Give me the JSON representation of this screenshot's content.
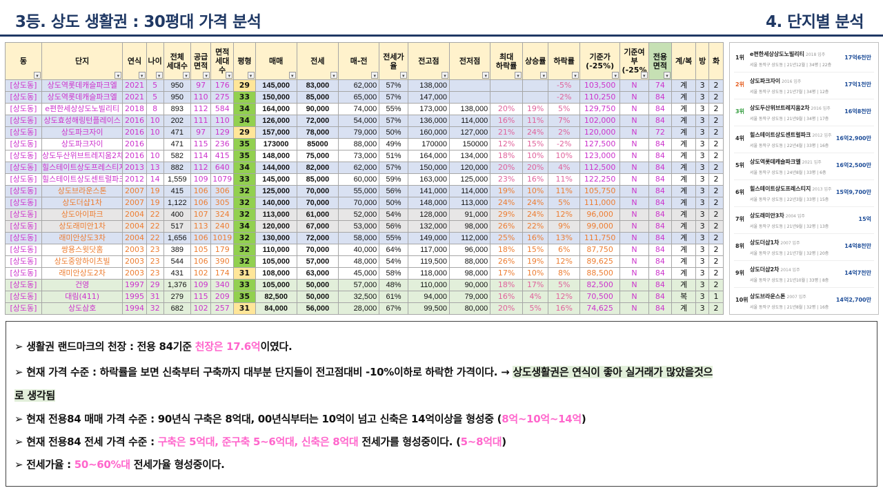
{
  "header": {
    "title_left": "3등. 상도 생활권 : 30평대 가격 분석",
    "title_right": "4. 단지별 분석"
  },
  "table": {
    "columns": [
      "동",
      "단지",
      "연식",
      "나이",
      "전체\n세대수",
      "공급\n면적",
      "면적\n세대\n수",
      "평형",
      "매매",
      "전세",
      "매-전",
      "전세가\n율",
      "전고점",
      "전저점",
      "최대\n하락률",
      "상승률",
      "하락률",
      "기준가\n(-25%)",
      "기준여\n부\n(-25%",
      "전용\n면적",
      "계/복",
      "방",
      "화"
    ],
    "rows": [
      {
        "c": "blue",
        "py": "Y",
        "v": [
          "[상도동]",
          "상도역롯데캐슬파크엘",
          "2021",
          "5",
          "950",
          "97",
          "176",
          "29",
          "145,000",
          "83,000",
          "62,000",
          "57%",
          "138,000",
          "",
          "",
          "",
          "-5%",
          "103,500",
          "N",
          "74",
          "계",
          "3",
          "2"
        ]
      },
      {
        "c": "blue",
        "py": "G",
        "v": [
          "[상도동]",
          "상도역롯데캐슬파크엘",
          "2021",
          "5",
          "950",
          "110",
          "275",
          "33",
          "150,000",
          "85,000",
          "65,000",
          "57%",
          "147,000",
          "",
          "",
          "",
          "-2%",
          "110,250",
          "N",
          "84",
          "계",
          "3",
          "2"
        ]
      },
      {
        "c": "white",
        "py": "G",
        "v": [
          "[상도동]",
          "e편한세상상도노빌리티",
          "2018",
          "8",
          "893",
          "112",
          "584",
          "34",
          "164,000",
          "90,000",
          "74,000",
          "55%",
          "173,000",
          "138,000",
          "20%",
          "19%",
          "5%",
          "129,750",
          "N",
          "84",
          "계",
          "3",
          "2"
        ]
      },
      {
        "c": "blue",
        "py": "G",
        "v": [
          "[상도동]",
          "상도효성해링턴플레이스",
          "2016",
          "10",
          "202",
          "111",
          "110",
          "34",
          "126,000",
          "72,000",
          "54,000",
          "57%",
          "136,000",
          "114,000",
          "16%",
          "11%",
          "7%",
          "102,000",
          "N",
          "84",
          "계",
          "3",
          "2"
        ]
      },
      {
        "c": "blue",
        "py": "Y",
        "v": [
          "[상도동]",
          "상도파크자이",
          "2016",
          "10",
          "471",
          "97",
          "129",
          "29",
          "157,000",
          "78,000",
          "79,000",
          "50%",
          "160,000",
          "127,000",
          "21%",
          "24%",
          "2%",
          "120,000",
          "N",
          "72",
          "계",
          "3",
          "2"
        ]
      },
      {
        "c": "white",
        "py": "G",
        "v": [
          "[상도동]",
          "상도파크자이",
          "2016",
          "",
          "471",
          "115",
          "236",
          "35",
          "173000",
          "85000",
          "88,000",
          "49%",
          "170000",
          "150000",
          "12%",
          "15%",
          "-2%",
          "127,500",
          "N",
          "84",
          "계",
          "3",
          "2"
        ]
      },
      {
        "c": "white",
        "py": "G",
        "v": [
          "[상도동]",
          "상도두산위브트레지움2차",
          "2016",
          "10",
          "582",
          "114",
          "415",
          "35",
          "148,000",
          "75,000",
          "73,000",
          "51%",
          "164,000",
          "134,000",
          "18%",
          "10%",
          "10%",
          "123,000",
          "N",
          "84",
          "계",
          "3",
          "2"
        ]
      },
      {
        "c": "blue",
        "py": "G",
        "v": [
          "[상도동]",
          "힐스테이트상도프레스티지",
          "2013",
          "13",
          "882",
          "112",
          "640",
          "34",
          "144,000",
          "82,000",
          "62,000",
          "57%",
          "150,000",
          "120,000",
          "20%",
          "20%",
          "4%",
          "112,500",
          "N",
          "84",
          "계",
          "3",
          "2"
        ]
      },
      {
        "c": "white",
        "py": "G",
        "v": [
          "[상도동]",
          "힐스테이트상도센트럴파크",
          "2012",
          "14",
          "1,559",
          "109",
          "1079",
          "33",
          "145,000",
          "85,000",
          "60,000",
          "59%",
          "163,000",
          "125,000",
          "23%",
          "16%",
          "11%",
          "122,250",
          "N",
          "84",
          "계",
          "3",
          "2"
        ]
      },
      {
        "c": "blue",
        "py": "G",
        "o": 1,
        "v": [
          "[상도동]",
          "상도브라운스톤",
          "2007",
          "19",
          "415",
          "106",
          "306",
          "32",
          "125,000",
          "70,000",
          "55,000",
          "56%",
          "141,000",
          "114,000",
          "19%",
          "10%",
          "11%",
          "105,750",
          "N",
          "84",
          "계",
          "3",
          "2"
        ]
      },
      {
        "c": "blue",
        "py": "G",
        "o": 1,
        "v": [
          "[상도동]",
          "상도더샵1차",
          "2007",
          "19",
          "1,122",
          "106",
          "305",
          "32",
          "140,000",
          "70,000",
          "70,000",
          "50%",
          "148,000",
          "113,000",
          "24%",
          "24%",
          "5%",
          "111,000",
          "N",
          "84",
          "계",
          "3",
          "2"
        ]
      },
      {
        "c": "grey",
        "py": "G",
        "o": 1,
        "v": [
          "[상도동]",
          "상도아이파크",
          "2004",
          "22",
          "400",
          "107",
          "324",
          "32",
          "113,000",
          "61,000",
          "52,000",
          "54%",
          "128,000",
          "91,000",
          "29%",
          "24%",
          "12%",
          "96,000",
          "N",
          "84",
          "계",
          "3",
          "2"
        ]
      },
      {
        "c": "grey",
        "py": "G",
        "o": 1,
        "v": [
          "[상도동]",
          "상도래미안1차",
          "2004",
          "22",
          "517",
          "113",
          "240",
          "34",
          "120,000",
          "67,000",
          "53,000",
          "56%",
          "132,000",
          "98,000",
          "26%",
          "22%",
          "9%",
          "99,000",
          "N",
          "84",
          "계",
          "3",
          "2"
        ]
      },
      {
        "c": "blue",
        "py": "G",
        "o": 1,
        "v": [
          "[상도동]",
          "래미안상도3차",
          "2004",
          "22",
          "1,656",
          "106",
          "1019",
          "32",
          "130,000",
          "72,000",
          "58,000",
          "55%",
          "149,000",
          "112,000",
          "25%",
          "16%",
          "13%",
          "111,750",
          "N",
          "84",
          "계",
          "3",
          "2"
        ]
      },
      {
        "c": "white",
        "py": "G",
        "o": 1,
        "v": [
          "[상도동]",
          "쌍용스윗닷홈",
          "2003",
          "23",
          "389",
          "105",
          "179",
          "32",
          "110,000",
          "70,000",
          "40,000",
          "64%",
          "117,000",
          "96,000",
          "18%",
          "15%",
          "6%",
          "87,750",
          "N",
          "84",
          "계",
          "3",
          "2"
        ]
      },
      {
        "c": "white",
        "py": "G",
        "o": 1,
        "v": [
          "[상도동]",
          "상도중앙하이츠빌",
          "2003",
          "23",
          "544",
          "106",
          "390",
          "32",
          "105,000",
          "57,000",
          "48,000",
          "54%",
          "119,500",
          "88,000",
          "26%",
          "19%",
          "12%",
          "89,625",
          "N",
          "84",
          "계",
          "3",
          "2"
        ]
      },
      {
        "c": "white",
        "py": "Y",
        "o": 1,
        "v": [
          "[상도동]",
          "래미안상도2차",
          "2003",
          "23",
          "431",
          "102",
          "174",
          "31",
          "108,000",
          "63,000",
          "45,000",
          "58%",
          "118,000",
          "98,000",
          "17%",
          "10%",
          "8%",
          "88,500",
          "N",
          "84",
          "계",
          "3",
          "2"
        ]
      },
      {
        "c": "teal",
        "py": "G",
        "v": [
          "[상도동]",
          "건영",
          "1997",
          "29",
          "1,376",
          "109",
          "340",
          "33",
          "105,000",
          "50,000",
          "57,000",
          "48%",
          "110,000",
          "90,000",
          "18%",
          "17%",
          "5%",
          "82,500",
          "N",
          "84",
          "계",
          "3",
          "2"
        ]
      },
      {
        "c": "teal",
        "py": "G",
        "v": [
          "[상도동]",
          "대림(411)",
          "1995",
          "31",
          "279",
          "115",
          "209",
          "35",
          "82,500",
          "50,000",
          "32,500",
          "61%",
          "94,000",
          "79,000",
          "16%",
          "4%",
          "12%",
          "70,500",
          "N",
          "84",
          "복",
          "3",
          "1"
        ]
      },
      {
        "c": "teal",
        "py": "Y",
        "v": [
          "[상도동]",
          "상도삼호",
          "1994",
          "32",
          "682",
          "102",
          "257",
          "31",
          "84,000",
          "56,000",
          "28,000",
          "67%",
          "99,500",
          "80,000",
          "20%",
          "5%",
          "16%",
          "74,625",
          "N",
          "84",
          "계",
          "3",
          "2"
        ]
      }
    ]
  },
  "ranking": [
    {
      "rank": "1위",
      "name": "e편한세상상도노빌리티",
      "year": "2018 입주",
      "sub": "서울 동작구 상도동 | 21년12월 | 34평 | 22층",
      "price": "17억6천만",
      "color": "dark"
    },
    {
      "rank": "2위",
      "name": "상도파크자이",
      "year": "2016 입주",
      "sub": "서울 동작구 상도동 | 21년7월 | 34평 | 12층",
      "price": "17억1천만",
      "color": "orange"
    },
    {
      "rank": "3위",
      "name": "상도두산위브트레지움2차",
      "year": "2016 입주",
      "sub": "서울 동작구 상도동 | 21년9월 | 34평 | 17층",
      "price": "16억8천만",
      "color": "green"
    },
    {
      "rank": "4위",
      "name": "힐스테이트상도센트럴파크",
      "year": "2012 입주",
      "sub": "서울 동작구 상도동 | 22년4월 | 33평 | 16층",
      "price": "16억2,900만",
      "color": "dark"
    },
    {
      "rank": "5위",
      "name": "상도역롯데캐슬파크엘",
      "year": "2021 입주",
      "sub": "서울 동작구 상도동 | 24년8월 | 33평 | 6층",
      "price": "16억2,500만",
      "color": "dark"
    },
    {
      "rank": "6위",
      "name": "힐스테이트상도프레스티지",
      "year": "2013 입주",
      "sub": "서울 동작구 상도동 | 22년3월 | 33평 | 15층",
      "price": "15억9,700만",
      "color": "dark"
    },
    {
      "rank": "7위",
      "name": "상도래미안3차",
      "year": "2004 입주",
      "sub": "서울 동작구 상도동 | 21년9월 | 32평 | 13층",
      "price": "15억",
      "color": "dark"
    },
    {
      "rank": "8위",
      "name": "상도더샵1차",
      "year": "2007 입주",
      "sub": "서울 동작구 상도동 | 21년7월 | 32평 | 20층",
      "price": "14억8천만",
      "color": "dark"
    },
    {
      "rank": "9위",
      "name": "상도더샵2차",
      "year": "2014 입주",
      "sub": "서울 동작구 상도동 | 21년10월 | 33평 | 8층",
      "price": "14억7천만",
      "color": "dark"
    },
    {
      "rank": "10위",
      "name": "상도브라운스톤",
      "year": "2007 입주",
      "sub": "서울 동작구 상도동 | 21년8월 | 32평 | 16층",
      "price": "14억2,700만",
      "color": "dark"
    }
  ],
  "summary": {
    "l1a": "➢ 생활권 랜드마크의 천장 : 전용 84기준 ",
    "l1b": "천장은 17.6억",
    "l1c": "이였다.",
    "l2a": "➢  현재 가격 수준 : 하락률을 보면 신축부터 구축까지 대부분 단지들이 전고점대비 -10%이하로 하락한 가격이다. → ",
    "l2b": "상도생활권은 연식이 좋아 실거래가 많았을것으",
    "l2c": "로 생각됨",
    "l3a": "➢ 현재 전용84 매매 가격 수준 : 90년식 구축은 8억대, 00년식부터는 10억이 넘고 신축은 14억이상을 형성중 (",
    "l3b": "8억~10억~14억",
    "l3c": ")",
    "l4a": "➢ 현재 전용84 전세 가격 수준 : ",
    "l4b": "구축은 5억대, 준구축 5~6억대, 신축은 8억대",
    "l4c": " 전세가를 형성중이다. (",
    "l4d": "5~8억대",
    "l4e": ")",
    "l5a": "➢ 전세가율 : ",
    "l5b": "50~60%대",
    "l5c": " 전세가율 형성중이다."
  }
}
